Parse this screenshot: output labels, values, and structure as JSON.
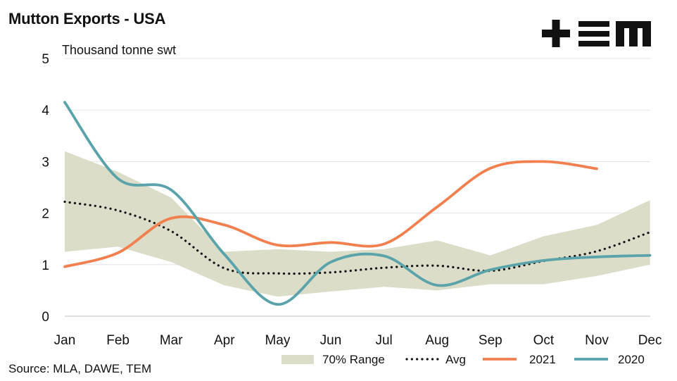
{
  "header": {
    "title": "Mutton Exports - USA"
  },
  "footer": {
    "source": "Source: MLA, DAWE, TEM"
  },
  "logo": {
    "name": "tem-logo",
    "text": "+TEM",
    "color": "#111111"
  },
  "colors": {
    "range": "#dcddc8",
    "avg": "#111111",
    "s2021": "#f2804f",
    "s2020": "#5aa3ab",
    "grid": "#e3e3e3"
  },
  "chart_data": {
    "type": "line",
    "title": "Mutton Exports - USA",
    "ylabel": "Thousand tonne swt",
    "xlabel": "",
    "ylim": [
      0,
      5
    ],
    "yticks": [
      0,
      1,
      2,
      3,
      4,
      5
    ],
    "grid": true,
    "legend_position": "bottom-right",
    "categories": [
      "Jan",
      "Feb",
      "Mar",
      "Apr",
      "May",
      "Jun",
      "Jul",
      "Aug",
      "Sep",
      "Oct",
      "Nov",
      "Dec"
    ],
    "range": {
      "name": "70% Range",
      "lower": [
        1.25,
        1.35,
        1.05,
        0.6,
        0.38,
        0.48,
        0.57,
        0.5,
        0.62,
        0.62,
        0.78,
        1.0
      ],
      "upper": [
        3.2,
        2.8,
        2.3,
        1.25,
        1.3,
        1.25,
        1.3,
        1.47,
        1.18,
        1.55,
        1.77,
        2.25
      ]
    },
    "series": [
      {
        "name": "Avg",
        "style": "dotted",
        "values": [
          2.22,
          2.05,
          1.65,
          0.93,
          0.83,
          0.85,
          0.94,
          0.98,
          0.88,
          1.07,
          1.26,
          1.63
        ]
      },
      {
        "name": "2021",
        "style": "solid",
        "values": [
          0.96,
          1.23,
          1.9,
          1.77,
          1.38,
          1.43,
          1.4,
          2.12,
          2.87,
          3.0,
          2.86,
          null
        ]
      },
      {
        "name": "2020",
        "style": "solid",
        "values": [
          4.15,
          2.67,
          2.45,
          1.2,
          0.23,
          1.05,
          1.17,
          0.6,
          0.9,
          1.08,
          1.15,
          1.18
        ]
      }
    ]
  }
}
